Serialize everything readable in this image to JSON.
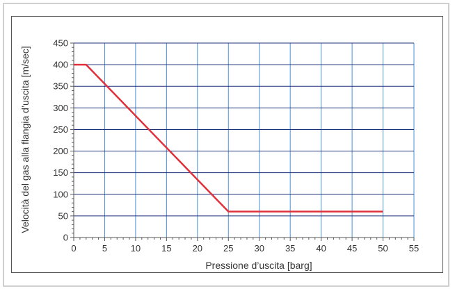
{
  "chart_data": {
    "type": "line",
    "title": "",
    "xlabel": "Pressione d’uscita [barg]",
    "ylabel": "Velocità del gas alla flangia d’uscita [m/sec]",
    "xlim": [
      0,
      55
    ],
    "ylim": [
      0,
      450
    ],
    "xticks": [
      0,
      5,
      10,
      15,
      20,
      25,
      30,
      35,
      40,
      45,
      50,
      55
    ],
    "yticks": [
      0,
      50,
      100,
      150,
      200,
      250,
      300,
      350,
      400,
      450
    ],
    "grid": true,
    "series": [
      {
        "x": [
          0,
          2,
          25,
          50
        ],
        "y": [
          400,
          400,
          60,
          60
        ],
        "color": "#e0303a"
      }
    ],
    "colors": {
      "vgrid": "#4a90d9",
      "hgrid": "#1c2f7a",
      "axis": "#555555",
      "line": "#e0303a"
    }
  }
}
